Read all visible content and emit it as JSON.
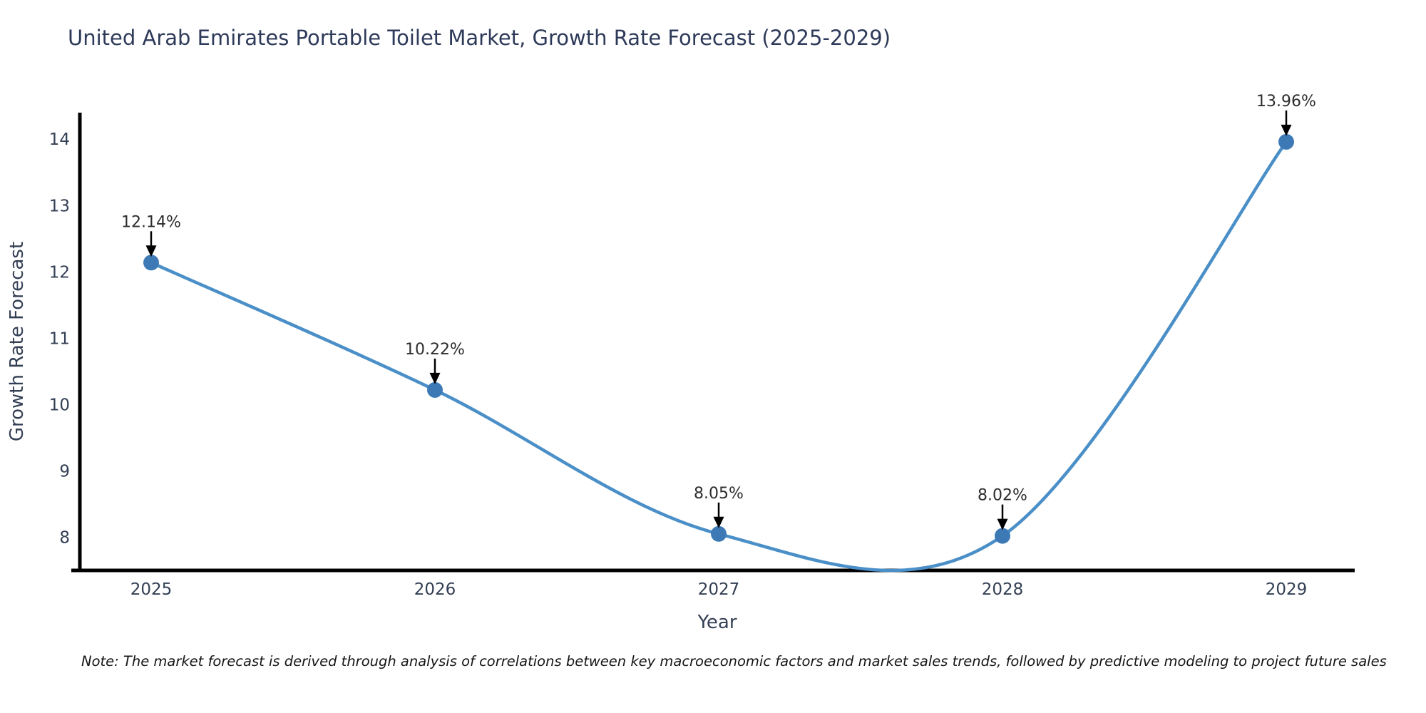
{
  "note": "Note: The market forecast is derived through analysis of correlations between key macroeconomic factors and market sales trends, followed by predictive modeling to project future sales",
  "chart_data": {
    "type": "line",
    "title": "United Arab Emirates Portable Toilet Market, Growth Rate Forecast (2025-2029)",
    "xlabel": "Year",
    "ylabel": "Growth Rate Forecast",
    "categories": [
      "2025",
      "2026",
      "2027",
      "2028",
      "2029"
    ],
    "values": [
      12.14,
      10.22,
      8.05,
      8.02,
      13.96
    ],
    "point_labels": [
      "12.14%",
      "10.22%",
      "8.05%",
      "8.02%",
      "13.96%"
    ],
    "yticks": [
      8,
      9,
      10,
      11,
      12,
      13,
      14
    ],
    "ylim": [
      7.5,
      14.4
    ],
    "grid": false,
    "legend": false,
    "smooth": true,
    "annotation_style": "black-down-arrow-to-marker",
    "colors": {
      "line": "#4a8fc7",
      "marker": "#3d7ab5",
      "axis": "#000000",
      "arrow": "#000000",
      "title_text": "#2e3a59",
      "tick_text": "#333f54",
      "point_label_text": "#2d2d2d",
      "note_text": "#151515",
      "background": "#ffffff"
    }
  }
}
